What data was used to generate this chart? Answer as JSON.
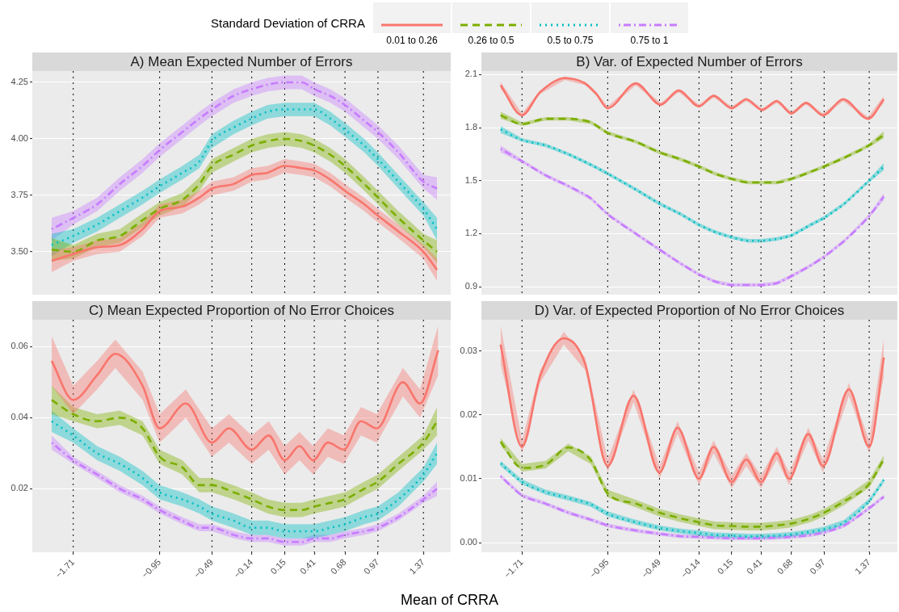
{
  "chart_data": [
    {
      "type": "line",
      "title": "A) Mean Expected Number of Errors",
      "legend": "top",
      "legend_title": "Standard Deviation of CRRA",
      "grid": "y",
      "tick_labels": "y",
      "x": [
        -1.9,
        -1.71,
        -1.5,
        -1.3,
        -1.1,
        -0.95,
        -0.75,
        -0.6,
        -0.49,
        -0.3,
        -0.14,
        0,
        0.15,
        0.3,
        0.41,
        0.55,
        0.68,
        0.85,
        0.97,
        1.15,
        1.37,
        1.49
      ],
      "xlim": [
        -2.07,
        1.61
      ],
      "xticks": [
        -1.71,
        -0.95,
        -0.49,
        -0.14,
        0.15,
        0.41,
        0.68,
        0.97,
        1.37
      ],
      "ylim": [
        3.31,
        4.3
      ],
      "yticks": [
        {
          "value": 3.5,
          "label": "3.50"
        },
        {
          "value": 3.75,
          "label": "3.75"
        },
        {
          "value": 4,
          "label": "4.00"
        },
        {
          "value": 4.25,
          "label": "4.25"
        }
      ],
      "ref_lines": [
        {
          "axis": "x",
          "value": -1.71,
          "color": "#000000",
          "line_style": "dotted"
        },
        {
          "axis": "x",
          "value": -0.95,
          "color": "#000000",
          "line_style": "dotted"
        },
        {
          "axis": "x",
          "value": -0.49,
          "color": "#000000",
          "line_style": "dotted"
        },
        {
          "axis": "x",
          "value": -0.14,
          "color": "#000000",
          "line_style": "dotted"
        },
        {
          "axis": "x",
          "value": 0.15,
          "color": "#000000",
          "line_style": "dotted"
        },
        {
          "axis": "x",
          "value": 0.41,
          "color": "#000000",
          "line_style": "dotted"
        },
        {
          "axis": "x",
          "value": 0.68,
          "color": "#000000",
          "line_style": "dotted"
        },
        {
          "axis": "x",
          "value": 0.97,
          "color": "#000000",
          "line_style": "dotted"
        },
        {
          "axis": "x",
          "value": 1.37,
          "color": "#000000",
          "line_style": "dotted"
        }
      ],
      "series": [
        {
          "name": "0.01 to 0.26",
          "color": "#f8766d",
          "line_style": "solid",
          "values": [
            3.46,
            3.49,
            3.52,
            3.53,
            3.6,
            3.68,
            3.7,
            3.74,
            3.78,
            3.8,
            3.84,
            3.85,
            3.88,
            3.87,
            3.86,
            3.82,
            3.77,
            3.71,
            3.66,
            3.59,
            3.5,
            3.42
          ],
          "lower": [
            3.41,
            3.46,
            3.49,
            3.5,
            3.57,
            3.65,
            3.67,
            3.71,
            3.75,
            3.77,
            3.81,
            3.82,
            3.85,
            3.84,
            3.83,
            3.79,
            3.74,
            3.68,
            3.63,
            3.56,
            3.47,
            3.37
          ],
          "upper": [
            3.51,
            3.52,
            3.55,
            3.56,
            3.63,
            3.71,
            3.73,
            3.77,
            3.81,
            3.83,
            3.87,
            3.88,
            3.91,
            3.9,
            3.89,
            3.85,
            3.8,
            3.74,
            3.69,
            3.62,
            3.53,
            3.47
          ]
        },
        {
          "name": "0.26 to 0.5",
          "color": "#7cae00",
          "line_style": "dashed",
          "values": [
            3.51,
            3.5,
            3.55,
            3.57,
            3.64,
            3.69,
            3.73,
            3.8,
            3.88,
            3.93,
            3.97,
            3.99,
            4.0,
            3.99,
            3.97,
            3.93,
            3.88,
            3.8,
            3.74,
            3.65,
            3.55,
            3.5
          ],
          "lower": [
            3.46,
            3.47,
            3.52,
            3.54,
            3.61,
            3.66,
            3.7,
            3.77,
            3.85,
            3.9,
            3.94,
            3.96,
            3.97,
            3.96,
            3.94,
            3.9,
            3.85,
            3.77,
            3.71,
            3.62,
            3.52,
            3.45
          ],
          "upper": [
            3.56,
            3.53,
            3.58,
            3.6,
            3.67,
            3.72,
            3.76,
            3.83,
            3.91,
            3.96,
            4.0,
            4.02,
            4.03,
            4.02,
            4.0,
            3.96,
            3.91,
            3.83,
            3.77,
            3.68,
            3.58,
            3.55
          ]
        },
        {
          "name": "0.5 to 0.75",
          "color": "#00bfc4",
          "line_style": "dotted",
          "values": [
            3.53,
            3.57,
            3.62,
            3.68,
            3.74,
            3.79,
            3.85,
            3.9,
            3.99,
            4.05,
            4.09,
            4.12,
            4.13,
            4.13,
            4.13,
            4.09,
            4.04,
            3.97,
            3.91,
            3.81,
            3.69,
            3.6
          ],
          "lower": [
            3.48,
            3.54,
            3.59,
            3.65,
            3.71,
            3.76,
            3.82,
            3.87,
            3.96,
            4.02,
            4.06,
            4.09,
            4.1,
            4.1,
            4.1,
            4.06,
            4.01,
            3.94,
            3.88,
            3.78,
            3.66,
            3.55
          ],
          "upper": [
            3.58,
            3.6,
            3.65,
            3.71,
            3.77,
            3.82,
            3.88,
            3.93,
            4.02,
            4.08,
            4.12,
            4.15,
            4.16,
            4.16,
            4.16,
            4.12,
            4.07,
            4.0,
            3.94,
            3.84,
            3.72,
            3.65
          ]
        },
        {
          "name": "0.75 to 1",
          "color": "#c77cff",
          "line_style": "dashdot",
          "values": [
            3.6,
            3.65,
            3.71,
            3.8,
            3.88,
            3.95,
            4.03,
            4.09,
            4.13,
            4.19,
            4.22,
            4.24,
            4.25,
            4.25,
            4.22,
            4.19,
            4.15,
            4.08,
            4.03,
            3.94,
            3.81,
            3.78
          ],
          "lower": [
            3.55,
            3.62,
            3.68,
            3.77,
            3.85,
            3.92,
            4.0,
            4.06,
            4.1,
            4.16,
            4.19,
            4.21,
            4.22,
            4.22,
            4.19,
            4.16,
            4.12,
            4.05,
            4.0,
            3.91,
            3.78,
            3.73
          ],
          "upper": [
            3.65,
            3.68,
            3.74,
            3.83,
            3.91,
            3.98,
            4.06,
            4.12,
            4.16,
            4.22,
            4.25,
            4.27,
            4.28,
            4.28,
            4.25,
            4.22,
            4.18,
            4.11,
            4.06,
            3.97,
            3.84,
            3.83
          ]
        }
      ]
    },
    {
      "type": "line",
      "title": "B) Var. of Expected Number of Errors",
      "grid": "y",
      "tick_labels": "y",
      "x": [
        -1.9,
        -1.71,
        -1.5,
        -1.3,
        -1.1,
        -0.95,
        -0.7,
        -0.49,
        -0.3,
        -0.14,
        0,
        0.15,
        0.3,
        0.41,
        0.55,
        0.68,
        0.85,
        0.97,
        1.15,
        1.37,
        1.5
      ],
      "xlim": [
        -2.07,
        1.62
      ],
      "xticks": [
        -1.71,
        -0.95,
        -0.49,
        -0.14,
        0.15,
        0.41,
        0.68,
        0.97,
        1.37
      ],
      "ylim": [
        0.855,
        2.12
      ],
      "yticks": [
        0.9,
        1.2,
        1.5,
        1.8,
        2.1
      ],
      "ref_lines": [
        {
          "axis": "x",
          "value": -1.71,
          "color": "#000000",
          "line_style": "dotted"
        },
        {
          "axis": "x",
          "value": -0.95,
          "color": "#000000",
          "line_style": "dotted"
        },
        {
          "axis": "x",
          "value": -0.49,
          "color": "#000000",
          "line_style": "dotted"
        },
        {
          "axis": "x",
          "value": -0.14,
          "color": "#000000",
          "line_style": "dotted"
        },
        {
          "axis": "x",
          "value": 0.15,
          "color": "#000000",
          "line_style": "dotted"
        },
        {
          "axis": "x",
          "value": 0.41,
          "color": "#000000",
          "line_style": "dotted"
        },
        {
          "axis": "x",
          "value": 0.68,
          "color": "#000000",
          "line_style": "dotted"
        },
        {
          "axis": "x",
          "value": 0.97,
          "color": "#000000",
          "line_style": "dotted"
        },
        {
          "axis": "x",
          "value": 1.37,
          "color": "#000000",
          "line_style": "dotted"
        }
      ],
      "series": [
        {
          "color": "#f8766d",
          "line_style": "solid",
          "x": [
            -1.9,
            -1.71,
            -1.55,
            -1.33,
            -1.15,
            -1.05,
            -0.95,
            -0.7,
            -0.48,
            -0.32,
            -0.14,
            -0.01,
            0.15,
            0.28,
            0.42,
            0.55,
            0.68,
            0.81,
            0.96,
            1.14,
            1.36,
            1.5
          ],
          "values": [
            2.04,
            1.87,
            2.0,
            2.08,
            2.05,
            1.99,
            1.91,
            2.05,
            1.93,
            2.01,
            1.92,
            1.98,
            1.91,
            1.96,
            1.9,
            1.95,
            1.88,
            1.94,
            1.87,
            1.96,
            1.85,
            1.96
          ],
          "lower": [
            2.02,
            1.86,
            1.99,
            2.07,
            2.04,
            1.98,
            1.9,
            2.04,
            1.92,
            2.0,
            1.91,
            1.97,
            1.9,
            1.95,
            1.89,
            1.94,
            1.87,
            1.93,
            1.86,
            1.95,
            1.84,
            1.94
          ],
          "upper": [
            2.06,
            1.88,
            2.01,
            2.09,
            2.06,
            2.0,
            1.92,
            2.06,
            1.94,
            2.02,
            1.93,
            1.99,
            1.92,
            1.97,
            1.91,
            1.96,
            1.89,
            1.95,
            1.88,
            1.97,
            1.86,
            1.98
          ]
        },
        {
          "color": "#7cae00",
          "line_style": "dashed",
          "values": [
            1.87,
            1.82,
            1.85,
            1.85,
            1.83,
            1.77,
            1.72,
            1.66,
            1.62,
            1.58,
            1.54,
            1.51,
            1.49,
            1.49,
            1.49,
            1.51,
            1.55,
            1.58,
            1.63,
            1.7,
            1.76
          ],
          "lower": [
            1.85,
            1.81,
            1.84,
            1.84,
            1.82,
            1.76,
            1.71,
            1.65,
            1.61,
            1.57,
            1.53,
            1.5,
            1.48,
            1.48,
            1.48,
            1.5,
            1.54,
            1.57,
            1.62,
            1.69,
            1.74
          ],
          "upper": [
            1.89,
            1.83,
            1.86,
            1.86,
            1.84,
            1.78,
            1.73,
            1.67,
            1.63,
            1.59,
            1.55,
            1.52,
            1.5,
            1.5,
            1.5,
            1.52,
            1.56,
            1.59,
            1.64,
            1.71,
            1.78
          ]
        },
        {
          "color": "#00bfc4",
          "line_style": "dotted",
          "values": [
            1.79,
            1.73,
            1.7,
            1.65,
            1.59,
            1.54,
            1.45,
            1.37,
            1.31,
            1.25,
            1.21,
            1.18,
            1.16,
            1.16,
            1.17,
            1.19,
            1.25,
            1.29,
            1.37,
            1.5,
            1.58
          ],
          "lower": [
            1.77,
            1.72,
            1.69,
            1.64,
            1.58,
            1.53,
            1.44,
            1.36,
            1.3,
            1.24,
            1.2,
            1.17,
            1.15,
            1.15,
            1.16,
            1.18,
            1.24,
            1.28,
            1.36,
            1.49,
            1.56
          ],
          "upper": [
            1.81,
            1.74,
            1.71,
            1.66,
            1.6,
            1.55,
            1.46,
            1.38,
            1.32,
            1.26,
            1.22,
            1.19,
            1.17,
            1.17,
            1.18,
            1.2,
            1.26,
            1.3,
            1.38,
            1.51,
            1.6
          ]
        },
        {
          "color": "#c77cff",
          "line_style": "dashdot",
          "values": [
            1.68,
            1.61,
            1.53,
            1.47,
            1.4,
            1.31,
            1.2,
            1.11,
            1.03,
            0.97,
            0.93,
            0.91,
            0.91,
            0.91,
            0.92,
            0.96,
            1.02,
            1.07,
            1.16,
            1.3,
            1.41
          ],
          "lower": [
            1.66,
            1.6,
            1.52,
            1.46,
            1.39,
            1.3,
            1.19,
            1.1,
            1.02,
            0.96,
            0.92,
            0.9,
            0.9,
            0.9,
            0.91,
            0.95,
            1.01,
            1.06,
            1.15,
            1.29,
            1.39
          ],
          "upper": [
            1.7,
            1.62,
            1.54,
            1.48,
            1.41,
            1.32,
            1.21,
            1.12,
            1.04,
            0.98,
            0.94,
            0.92,
            0.92,
            0.92,
            0.93,
            0.97,
            1.03,
            1.08,
            1.17,
            1.31,
            1.43
          ]
        }
      ]
    },
    {
      "type": "line",
      "title": "C) Mean Expected Proportion of No Error Choices",
      "xlabel": "Mean of CRRA",
      "grid": "y",
      "x": [
        -1.9,
        -1.71,
        -1.5,
        -1.3,
        -1.1,
        -0.95,
        -0.75,
        -0.6,
        -0.49,
        -0.3,
        -0.14,
        0,
        0.15,
        0.3,
        0.41,
        0.55,
        0.68,
        0.85,
        0.97,
        1.15,
        1.37,
        1.49
      ],
      "xlim": [
        -2.07,
        1.61
      ],
      "xticks": [
        {
          "value": -1.71,
          "label": "−1.71"
        },
        {
          "value": -0.95,
          "label": "−0.95"
        },
        {
          "value": -0.49,
          "label": "−0.49"
        },
        {
          "value": -0.14,
          "label": "−0.14"
        },
        0.15,
        0.41,
        0.68,
        0.97,
        1.37
      ],
      "ylim": [
        0.0021,
        0.0676
      ],
      "yticks": [
        0.02,
        0.04,
        0.06
      ],
      "ref_lines": [
        {
          "axis": "x",
          "value": -1.71,
          "color": "#000000",
          "line_style": "dotted"
        },
        {
          "axis": "x",
          "value": -0.95,
          "color": "#000000",
          "line_style": "dotted"
        },
        {
          "axis": "x",
          "value": -0.49,
          "color": "#000000",
          "line_style": "dotted"
        },
        {
          "axis": "x",
          "value": -0.14,
          "color": "#000000",
          "line_style": "dotted"
        },
        {
          "axis": "x",
          "value": 0.15,
          "color": "#000000",
          "line_style": "dotted"
        },
        {
          "axis": "x",
          "value": 0.41,
          "color": "#000000",
          "line_style": "dotted"
        },
        {
          "axis": "x",
          "value": 0.68,
          "color": "#000000",
          "line_style": "dotted"
        },
        {
          "axis": "x",
          "value": 0.97,
          "color": "#000000",
          "line_style": "dotted"
        },
        {
          "axis": "x",
          "value": 1.37,
          "color": "#000000",
          "line_style": "dotted"
        }
      ],
      "series": [
        {
          "color": "#f8766d",
          "line_style": "solid",
          "x": [
            -1.9,
            -1.71,
            -1.5,
            -1.34,
            -1.1,
            -0.95,
            -0.72,
            -0.49,
            -0.34,
            -0.14,
            0.01,
            0.15,
            0.28,
            0.4,
            0.53,
            0.67,
            0.82,
            0.96,
            1.19,
            1.34,
            1.5
          ],
          "values": [
            0.056,
            0.045,
            0.052,
            0.058,
            0.049,
            0.037,
            0.044,
            0.033,
            0.037,
            0.031,
            0.035,
            0.028,
            0.032,
            0.028,
            0.033,
            0.031,
            0.039,
            0.037,
            0.05,
            0.044,
            0.059
          ],
          "lower": [
            0.049,
            0.041,
            0.048,
            0.054,
            0.045,
            0.033,
            0.04,
            0.029,
            0.033,
            0.027,
            0.031,
            0.024,
            0.028,
            0.024,
            0.029,
            0.027,
            0.035,
            0.033,
            0.046,
            0.04,
            0.052
          ],
          "upper": [
            0.063,
            0.049,
            0.056,
            0.062,
            0.053,
            0.041,
            0.048,
            0.037,
            0.041,
            0.035,
            0.039,
            0.032,
            0.036,
            0.032,
            0.037,
            0.035,
            0.043,
            0.041,
            0.054,
            0.048,
            0.066
          ]
        },
        {
          "color": "#7cae00",
          "line_style": "dashed",
          "values": [
            0.045,
            0.041,
            0.039,
            0.04,
            0.037,
            0.029,
            0.026,
            0.021,
            0.021,
            0.019,
            0.017,
            0.015,
            0.014,
            0.014,
            0.015,
            0.016,
            0.017,
            0.02,
            0.022,
            0.027,
            0.033,
            0.039
          ],
          "lower": [
            0.041,
            0.039,
            0.037,
            0.038,
            0.035,
            0.027,
            0.024,
            0.019,
            0.019,
            0.017,
            0.015,
            0.013,
            0.012,
            0.012,
            0.013,
            0.014,
            0.015,
            0.018,
            0.02,
            0.025,
            0.031,
            0.035
          ],
          "upper": [
            0.049,
            0.043,
            0.041,
            0.042,
            0.039,
            0.031,
            0.028,
            0.023,
            0.023,
            0.021,
            0.019,
            0.017,
            0.016,
            0.016,
            0.017,
            0.018,
            0.019,
            0.022,
            0.024,
            0.029,
            0.035,
            0.043
          ]
        },
        {
          "color": "#00bfc4",
          "line_style": "dotted",
          "values": [
            0.039,
            0.035,
            0.03,
            0.027,
            0.023,
            0.019,
            0.017,
            0.015,
            0.013,
            0.011,
            0.009,
            0.009,
            0.008,
            0.008,
            0.008,
            0.009,
            0.01,
            0.012,
            0.013,
            0.017,
            0.024,
            0.03
          ],
          "lower": [
            0.036,
            0.033,
            0.028,
            0.025,
            0.021,
            0.017,
            0.015,
            0.013,
            0.011,
            0.009,
            0.007,
            0.007,
            0.006,
            0.006,
            0.006,
            0.007,
            0.008,
            0.01,
            0.011,
            0.015,
            0.022,
            0.027
          ],
          "upper": [
            0.042,
            0.037,
            0.032,
            0.029,
            0.025,
            0.021,
            0.019,
            0.017,
            0.015,
            0.013,
            0.011,
            0.011,
            0.01,
            0.01,
            0.01,
            0.011,
            0.012,
            0.014,
            0.015,
            0.019,
            0.026,
            0.033
          ]
        },
        {
          "color": "#c77cff",
          "line_style": "dashdot",
          "values": [
            0.033,
            0.028,
            0.024,
            0.02,
            0.017,
            0.014,
            0.011,
            0.009,
            0.009,
            0.007,
            0.006,
            0.006,
            0.005,
            0.005,
            0.006,
            0.006,
            0.007,
            0.008,
            0.009,
            0.012,
            0.017,
            0.02
          ],
          "lower": [
            0.031,
            0.027,
            0.023,
            0.019,
            0.016,
            0.013,
            0.01,
            0.008,
            0.008,
            0.006,
            0.005,
            0.005,
            0.004,
            0.004,
            0.005,
            0.005,
            0.006,
            0.007,
            0.008,
            0.011,
            0.016,
            0.018
          ],
          "upper": [
            0.035,
            0.029,
            0.025,
            0.021,
            0.018,
            0.015,
            0.012,
            0.01,
            0.01,
            0.008,
            0.007,
            0.007,
            0.006,
            0.006,
            0.007,
            0.007,
            0.008,
            0.009,
            0.01,
            0.013,
            0.018,
            0.022
          ]
        }
      ]
    },
    {
      "type": "line",
      "title": "D) Var. of Expected Proportion of No Error Choices",
      "grid": "y",
      "x": [
        -1.9,
        -1.71,
        -1.5,
        -1.3,
        -1.1,
        -0.95,
        -0.7,
        -0.49,
        -0.3,
        -0.14,
        0,
        0.15,
        0.3,
        0.41,
        0.55,
        0.68,
        0.85,
        0.97,
        1.15,
        1.37,
        1.5
      ],
      "xlim": [
        -2.07,
        1.62
      ],
      "xticks": [
        {
          "value": -1.71,
          "label": "−1.71"
        },
        {
          "value": -0.95,
          "label": "−0.95"
        },
        {
          "value": -0.49,
          "label": "−0.49"
        },
        {
          "value": -0.14,
          "label": "−0.14"
        },
        0.15,
        0.41,
        0.68,
        0.97,
        1.37
      ],
      "ylim": [
        -0.0015,
        0.0349
      ],
      "yticks": [
        {
          "value": 0,
          "label": "0.00"
        },
        0.01,
        0.02,
        0.03
      ],
      "ref_lines": [
        {
          "axis": "x",
          "value": -1.71,
          "color": "#000000",
          "line_style": "dotted"
        },
        {
          "axis": "x",
          "value": -0.95,
          "color": "#000000",
          "line_style": "dotted"
        },
        {
          "axis": "x",
          "value": -0.49,
          "color": "#000000",
          "line_style": "dotted"
        },
        {
          "axis": "x",
          "value": -0.14,
          "color": "#000000",
          "line_style": "dotted"
        },
        {
          "axis": "x",
          "value": 0.15,
          "color": "#000000",
          "line_style": "dotted"
        },
        {
          "axis": "x",
          "value": 0.41,
          "color": "#000000",
          "line_style": "dotted"
        },
        {
          "axis": "x",
          "value": 0.68,
          "color": "#000000",
          "line_style": "dotted"
        },
        {
          "axis": "x",
          "value": 0.97,
          "color": "#000000",
          "line_style": "dotted"
        },
        {
          "axis": "x",
          "value": 1.37,
          "color": "#000000",
          "line_style": "dotted"
        }
      ],
      "series": [
        {
          "color": "#f8766d",
          "line_style": "solid",
          "x": [
            -1.9,
            -1.71,
            -1.55,
            -1.34,
            -1.15,
            -0.95,
            -0.72,
            -0.49,
            -0.33,
            -0.14,
            -0.01,
            0.15,
            0.28,
            0.41,
            0.55,
            0.66,
            0.83,
            0.96,
            1.19,
            1.37,
            1.5
          ],
          "values": [
            0.031,
            0.015,
            0.026,
            0.032,
            0.028,
            0.012,
            0.023,
            0.011,
            0.018,
            0.01,
            0.015,
            0.0095,
            0.013,
            0.0095,
            0.014,
            0.01,
            0.017,
            0.012,
            0.024,
            0.015,
            0.029
          ],
          "lower": [
            0.028,
            0.014,
            0.025,
            0.031,
            0.027,
            0.011,
            0.022,
            0.01,
            0.017,
            0.009,
            0.014,
            0.0085,
            0.012,
            0.0085,
            0.013,
            0.009,
            0.016,
            0.011,
            0.023,
            0.014,
            0.026
          ],
          "upper": [
            0.034,
            0.016,
            0.027,
            0.033,
            0.029,
            0.013,
            0.024,
            0.012,
            0.019,
            0.011,
            0.016,
            0.0105,
            0.014,
            0.0105,
            0.015,
            0.011,
            0.018,
            0.013,
            0.025,
            0.016,
            0.032
          ]
        },
        {
          "color": "#7cae00",
          "line_style": "dashed",
          "values": [
            0.0158,
            0.0117,
            0.0122,
            0.0149,
            0.0129,
            0.0077,
            0.0061,
            0.0047,
            0.0038,
            0.0032,
            0.0027,
            0.0026,
            0.0025,
            0.0025,
            0.0027,
            0.003,
            0.0038,
            0.0047,
            0.0065,
            0.0092,
            0.0131
          ],
          "lower": [
            0.0152,
            0.0111,
            0.0116,
            0.0143,
            0.0123,
            0.0071,
            0.0055,
            0.0041,
            0.0032,
            0.0026,
            0.0021,
            0.002,
            0.0019,
            0.0019,
            0.0021,
            0.0024,
            0.0032,
            0.0041,
            0.0059,
            0.0086,
            0.0125
          ],
          "upper": [
            0.0164,
            0.0123,
            0.0128,
            0.0155,
            0.0135,
            0.0083,
            0.0067,
            0.0053,
            0.0044,
            0.0038,
            0.0033,
            0.0032,
            0.0031,
            0.0031,
            0.0033,
            0.0036,
            0.0044,
            0.0053,
            0.0071,
            0.0098,
            0.0137
          ]
        },
        {
          "color": "#00bfc4",
          "line_style": "dotted",
          "values": [
            0.0124,
            0.0095,
            0.0079,
            0.007,
            0.006,
            0.0045,
            0.0032,
            0.0023,
            0.0018,
            0.0015,
            0.0012,
            0.0011,
            0.001,
            0.001,
            0.0011,
            0.0013,
            0.0017,
            0.0021,
            0.0032,
            0.0065,
            0.0098
          ],
          "lower": [
            0.012,
            0.0091,
            0.0075,
            0.0066,
            0.0056,
            0.0041,
            0.0028,
            0.0019,
            0.0014,
            0.0011,
            0.0008,
            0.0007,
            0.0006,
            0.0006,
            0.0007,
            0.0009,
            0.0013,
            0.0017,
            0.0028,
            0.0061,
            0.0094
          ],
          "upper": [
            0.0128,
            0.0099,
            0.0083,
            0.0074,
            0.0064,
            0.0049,
            0.0036,
            0.0027,
            0.0022,
            0.0019,
            0.0016,
            0.0015,
            0.0014,
            0.0014,
            0.0015,
            0.0017,
            0.0021,
            0.0025,
            0.0036,
            0.0069,
            0.0102
          ]
        },
        {
          "color": "#c77cff",
          "line_style": "dashdot",
          "values": [
            0.0104,
            0.0074,
            0.0061,
            0.0047,
            0.0036,
            0.0027,
            0.0019,
            0.0014,
            0.001,
            0.0009,
            0.0008,
            0.0007,
            0.0007,
            0.0007,
            0.0008,
            0.0009,
            0.0012,
            0.0016,
            0.0027,
            0.0054,
            0.0072
          ],
          "lower": [
            0.0101,
            0.0071,
            0.0058,
            0.0044,
            0.0033,
            0.0024,
            0.0016,
            0.0011,
            0.0007,
            0.0006,
            0.0005,
            0.0004,
            0.0004,
            0.0004,
            0.0005,
            0.0006,
            0.0009,
            0.0013,
            0.0024,
            0.0051,
            0.0069
          ],
          "upper": [
            0.0107,
            0.0077,
            0.0064,
            0.005,
            0.0039,
            0.003,
            0.0022,
            0.0017,
            0.0013,
            0.0012,
            0.0011,
            0.001,
            0.001,
            0.001,
            0.0011,
            0.0012,
            0.0015,
            0.0019,
            0.003,
            0.0057,
            0.0075
          ]
        }
      ]
    }
  ]
}
